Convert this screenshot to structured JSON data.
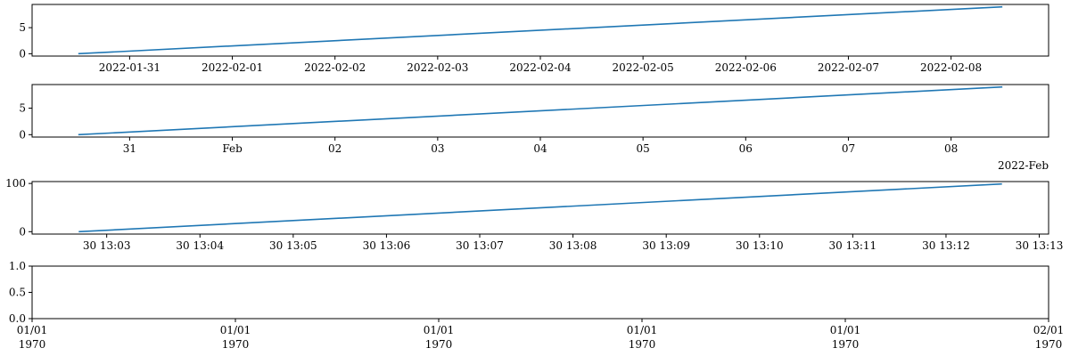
{
  "chart_data": [
    {
      "type": "line",
      "x_kind": "date",
      "x": [
        0,
        9
      ],
      "y": [
        0,
        9
      ],
      "xlim": [
        -0.45,
        9.45
      ],
      "ylim": [
        -0.45,
        9.45
      ],
      "x_ticks": [
        {
          "value": 0.5,
          "label": "2022-01-31"
        },
        {
          "value": 1.5,
          "label": "2022-02-01"
        },
        {
          "value": 2.5,
          "label": "2022-02-02"
        },
        {
          "value": 3.5,
          "label": "2022-02-03"
        },
        {
          "value": 4.5,
          "label": "2022-02-04"
        },
        {
          "value": 5.5,
          "label": "2022-02-05"
        },
        {
          "value": 6.5,
          "label": "2022-02-06"
        },
        {
          "value": 7.5,
          "label": "2022-02-07"
        },
        {
          "value": 8.5,
          "label": "2022-02-08"
        }
      ],
      "y_ticks": [
        {
          "value": 0,
          "label": "0"
        },
        {
          "value": 5,
          "label": "5"
        }
      ],
      "offset_label": ""
    },
    {
      "type": "line",
      "x_kind": "date",
      "x": [
        0,
        9
      ],
      "y": [
        0,
        9
      ],
      "xlim": [
        -0.45,
        9.45
      ],
      "ylim": [
        -0.45,
        9.45
      ],
      "x_ticks": [
        {
          "value": 0.5,
          "label": "31"
        },
        {
          "value": 1.5,
          "label": "Feb"
        },
        {
          "value": 2.5,
          "label": "02"
        },
        {
          "value": 3.5,
          "label": "03"
        },
        {
          "value": 4.5,
          "label": "04"
        },
        {
          "value": 5.5,
          "label": "05"
        },
        {
          "value": 6.5,
          "label": "06"
        },
        {
          "value": 7.5,
          "label": "07"
        },
        {
          "value": 8.5,
          "label": "08"
        }
      ],
      "y_ticks": [
        {
          "value": 0,
          "label": "0"
        },
        {
          "value": 5,
          "label": "5"
        }
      ],
      "offset_label": "2022-Feb"
    },
    {
      "type": "line",
      "x_kind": "datetime-minutes",
      "x": [
        0,
        9.9
      ],
      "y": [
        0,
        99
      ],
      "xlim": [
        -0.5,
        10.4
      ],
      "ylim": [
        -4.95,
        103.95
      ],
      "x_ticks": [
        {
          "value": 0.3,
          "label": "30 13:03"
        },
        {
          "value": 1.3,
          "label": "30 13:04"
        },
        {
          "value": 2.3,
          "label": "30 13:05"
        },
        {
          "value": 3.3,
          "label": "30 13:06"
        },
        {
          "value": 4.3,
          "label": "30 13:07"
        },
        {
          "value": 5.3,
          "label": "30 13:08"
        },
        {
          "value": 6.3,
          "label": "30 13:09"
        },
        {
          "value": 7.3,
          "label": "30 13:10"
        },
        {
          "value": 8.3,
          "label": "30 13:11"
        },
        {
          "value": 9.3,
          "label": "30 13:12"
        },
        {
          "value": 10.3,
          "label": "30 13:13"
        }
      ],
      "y_ticks": [
        {
          "value": 0,
          "label": "0"
        },
        {
          "value": 100,
          "label": "100"
        }
      ],
      "offset_label": ""
    },
    {
      "type": "line",
      "x_kind": "date-empty",
      "x": [],
      "y": [],
      "xlim": [
        0,
        1
      ],
      "ylim": [
        0,
        1
      ],
      "x_ticks": [
        {
          "value": 0.0,
          "label": [
            "01/01",
            "1970"
          ]
        },
        {
          "value": 0.2,
          "label": [
            "01/01",
            "1970"
          ]
        },
        {
          "value": 0.4,
          "label": [
            "01/01",
            "1970"
          ]
        },
        {
          "value": 0.6,
          "label": [
            "01/01",
            "1970"
          ]
        },
        {
          "value": 0.8,
          "label": [
            "01/01",
            "1970"
          ]
        },
        {
          "value": 1.0,
          "label": [
            "02/01",
            "1970"
          ]
        }
      ],
      "y_ticks": [
        {
          "value": 0.0,
          "label": "0.0"
        },
        {
          "value": 0.5,
          "label": "0.5"
        },
        {
          "value": 1.0,
          "label": "1.0"
        }
      ],
      "offset_label": ""
    }
  ]
}
